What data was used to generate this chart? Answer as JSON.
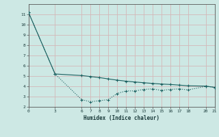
{
  "xlabel": "Humidex (Indice chaleur)",
  "ylabel": "",
  "background_color": "#cde8e4",
  "plot_bg_color": "#cde8e4",
  "line_color": "#1a6060",
  "grid_color": "#d4b8b8",
  "line1_x": [
    0,
    3,
    6,
    7,
    8,
    9,
    10,
    11,
    12,
    13,
    14,
    15,
    16,
    17,
    18,
    20,
    21
  ],
  "line1_y": [
    11.2,
    5.2,
    2.7,
    2.5,
    2.6,
    2.7,
    3.3,
    3.55,
    3.55,
    3.7,
    3.75,
    3.6,
    3.7,
    3.75,
    3.65,
    4.0,
    3.9
  ],
  "line2_x": [
    0,
    3,
    6,
    7,
    8,
    9,
    10,
    11,
    12,
    13,
    14,
    15,
    16,
    17,
    18,
    20,
    21
  ],
  "line2_y": [
    11.2,
    5.2,
    5.05,
    4.95,
    4.85,
    4.72,
    4.6,
    4.5,
    4.42,
    4.35,
    4.28,
    4.22,
    4.18,
    4.12,
    4.05,
    4.02,
    3.9
  ],
  "xlim": [
    0,
    21
  ],
  "ylim": [
    2,
    12
  ],
  "yticks": [
    2,
    3,
    4,
    5,
    6,
    7,
    8,
    9,
    10,
    11
  ],
  "xticks": [
    0,
    3,
    6,
    7,
    8,
    9,
    10,
    11,
    12,
    13,
    14,
    15,
    16,
    17,
    18,
    20,
    21
  ]
}
